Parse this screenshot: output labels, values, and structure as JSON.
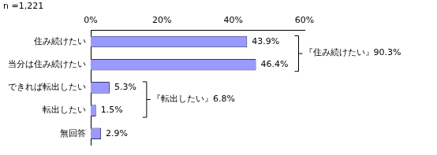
{
  "chart_data": {
    "type": "bar",
    "orientation": "horizontal",
    "title": "n =1,221",
    "categories": [
      "住み続けたい",
      "当分は住み続けたい",
      "できれば転出したい",
      "転出したい",
      "無回答"
    ],
    "values": [
      43.9,
      46.4,
      5.3,
      1.5,
      2.9
    ],
    "value_labels": [
      "43.9%",
      "46.4%",
      "5.3%",
      "1.5%",
      "2.9%"
    ],
    "data_labels": true,
    "color": "#9999ff",
    "xlim": [
      0,
      60
    ],
    "xticks": [
      {
        "value": 0,
        "label": "0%"
      },
      {
        "value": 20,
        "label": "20%"
      },
      {
        "value": 40,
        "label": "40%"
      },
      {
        "value": 60,
        "label": "60%"
      }
    ],
    "grid": false,
    "annotations": [
      {
        "text": "『住み続けたい』90.3%",
        "categories": [
          "住み続けたい",
          "当分は住み続けたい"
        ]
      },
      {
        "text": "『転出したい』6.8%",
        "categories": [
          "できれば転出したい",
          "転出したい"
        ]
      }
    ]
  }
}
